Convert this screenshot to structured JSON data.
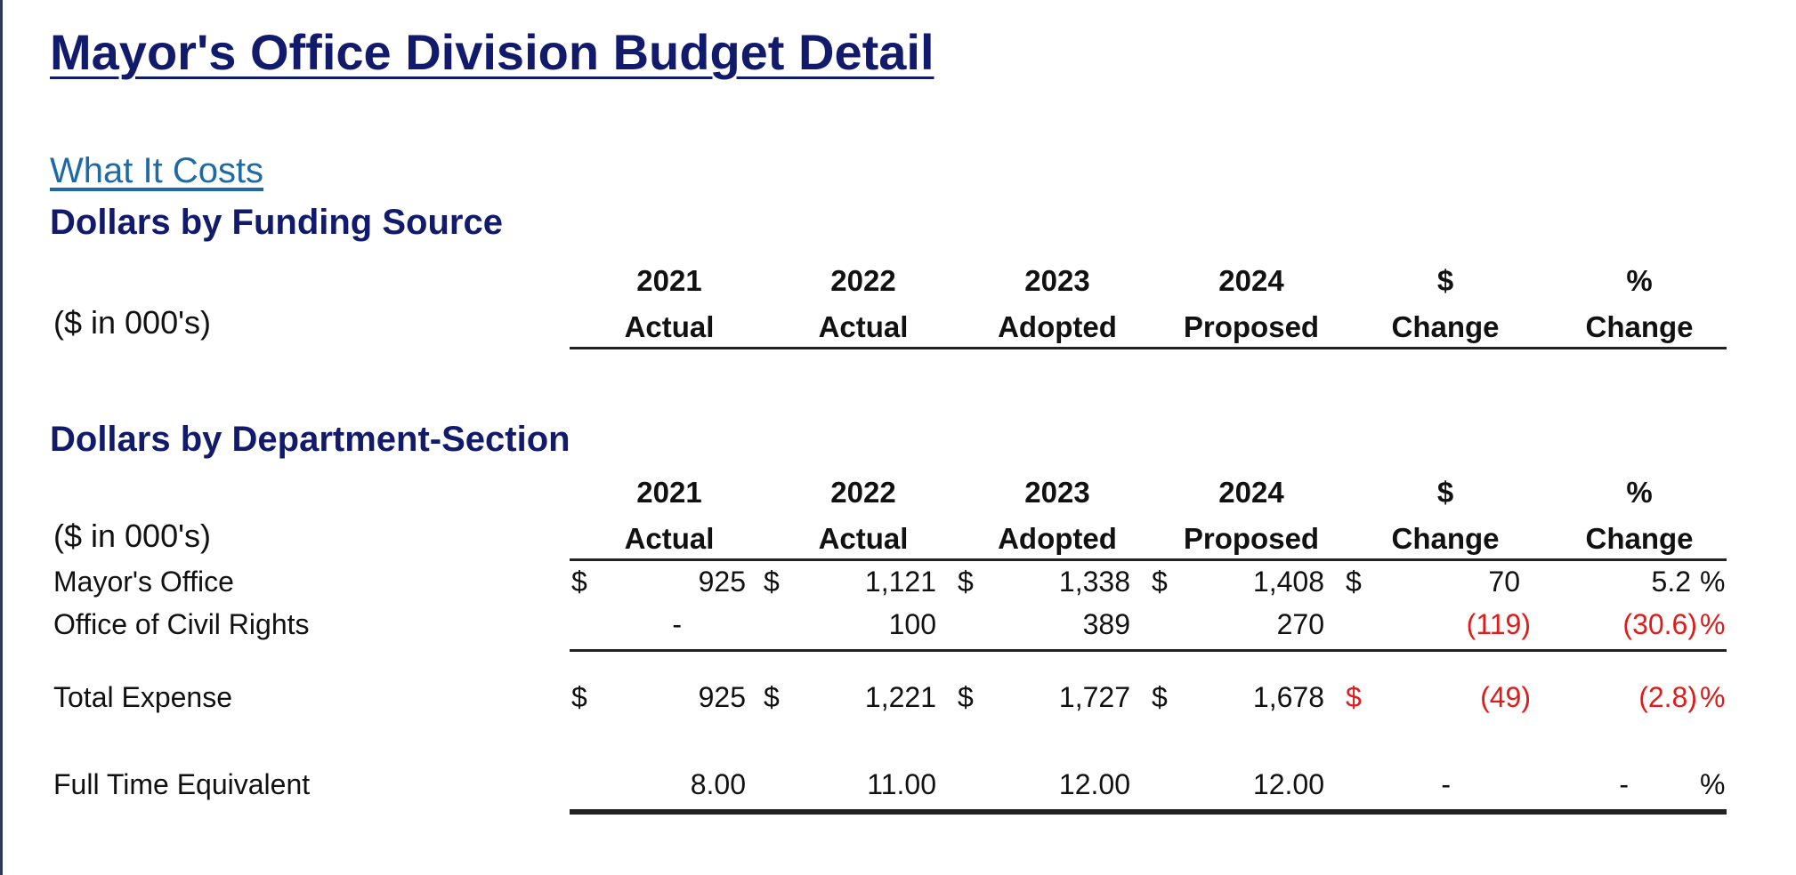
{
  "title": "Mayor's Office Division Budget Detail",
  "link": "What It Costs",
  "funding_section": {
    "title": "Dollars by Funding Source",
    "unit_label": "($ in 000's)"
  },
  "department_section": {
    "title": "Dollars by Department-Section",
    "unit_label": "($ in 000's)"
  },
  "columns": [
    {
      "line1": "2021",
      "line2": "Actual"
    },
    {
      "line1": "2022",
      "line2": "Actual"
    },
    {
      "line1": "2023",
      "line2": "Adopted"
    },
    {
      "line1": "2024",
      "line2": "Proposed"
    },
    {
      "line1": "$",
      "line2": "Change"
    },
    {
      "line1": "%",
      "line2": "Change"
    }
  ],
  "rows": {
    "mayors_office": {
      "label": "Mayor's Office",
      "currency": "$",
      "values": [
        "925",
        "1,121",
        "1,338",
        "1,408",
        "70",
        "5.2"
      ],
      "pct_sign": "%"
    },
    "civil_rights": {
      "label": "Office of Civil Rights",
      "values": [
        "-",
        "100",
        "389",
        "270",
        "(119)",
        "(30.6)"
      ],
      "pct_sign": "%"
    },
    "total_expense": {
      "label": "Total Expense",
      "currency": "$",
      "values": [
        "925",
        "1,221",
        "1,727",
        "1,678",
        "(49)",
        "(2.8)"
      ],
      "pct_sign": "%"
    },
    "fte": {
      "label": "Full Time Equivalent",
      "values": [
        "8.00",
        "11.00",
        "12.00",
        "12.00",
        "-",
        "-"
      ],
      "pct_sign": "%"
    }
  },
  "colors": {
    "heading": "#121a6b",
    "link": "#1f6aa5",
    "negative": "#e01b1b"
  }
}
